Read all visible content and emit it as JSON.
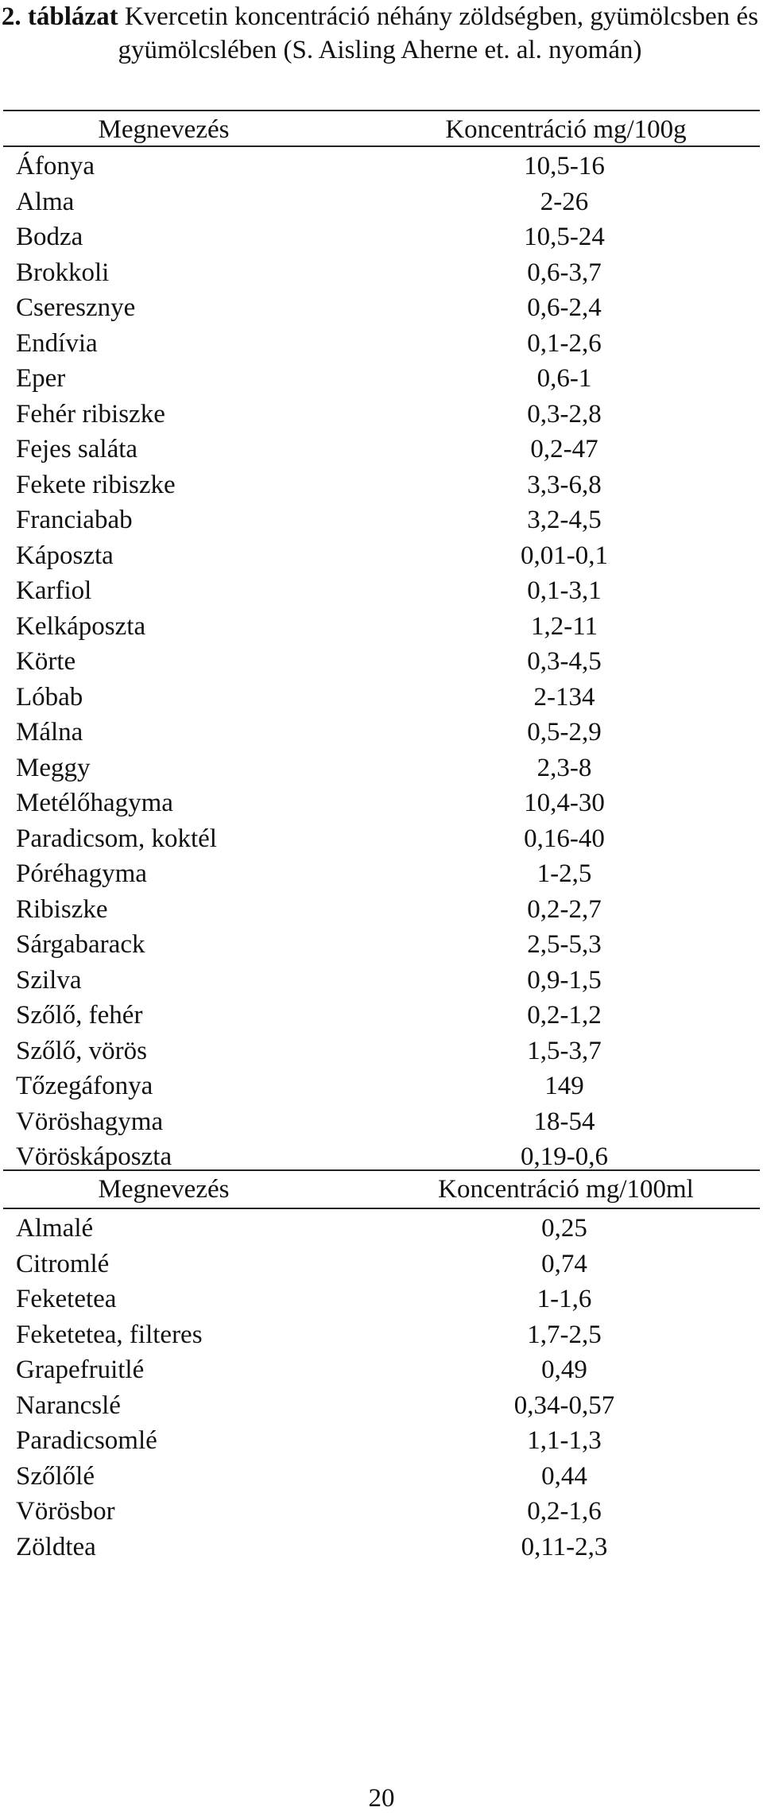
{
  "caption": {
    "label": "2. táblázat",
    "text": "Kvercetin koncentráció néhány zöldségben, gyümölcsben és gyümölcslében (S. Aisling Aherne et. al. nyomán)"
  },
  "table_food": {
    "header": {
      "name": "Megnevezés",
      "concentration": "Koncentráció mg/100g"
    },
    "rows": [
      {
        "name": "Áfonya",
        "value": "10,5-16"
      },
      {
        "name": "Alma",
        "value": "2-26"
      },
      {
        "name": "Bodza",
        "value": "10,5-24"
      },
      {
        "name": "Brokkoli",
        "value": "0,6-3,7"
      },
      {
        "name": "Cseresznye",
        "value": "0,6-2,4"
      },
      {
        "name": "Endívia",
        "value": "0,1-2,6"
      },
      {
        "name": "Eper",
        "value": "0,6-1"
      },
      {
        "name": "Fehér ribiszke",
        "value": "0,3-2,8"
      },
      {
        "name": "Fejes saláta",
        "value": "0,2-47"
      },
      {
        "name": "Fekete ribiszke",
        "value": "3,3-6,8"
      },
      {
        "name": "Franciabab",
        "value": "3,2-4,5"
      },
      {
        "name": "Káposzta",
        "value": "0,01-0,1"
      },
      {
        "name": "Karfiol",
        "value": "0,1-3,1"
      },
      {
        "name": "Kelkáposzta",
        "value": "1,2-11"
      },
      {
        "name": "Körte",
        "value": "0,3-4,5"
      },
      {
        "name": "Lóbab",
        "value": "2-134"
      },
      {
        "name": "Málna",
        "value": "0,5-2,9"
      },
      {
        "name": "Meggy",
        "value": "2,3-8"
      },
      {
        "name": "Metélőhagyma",
        "value": "10,4-30"
      },
      {
        "name": "Paradicsom, koktél",
        "value": "0,16-40"
      },
      {
        "name": "Póréhagyma",
        "value": "1-2,5"
      },
      {
        "name": "Ribiszke",
        "value": "0,2-2,7"
      },
      {
        "name": "Sárgabarack",
        "value": "2,5-5,3"
      },
      {
        "name": "Szilva",
        "value": "0,9-1,5"
      },
      {
        "name": "Szőlő, fehér",
        "value": "0,2-1,2"
      },
      {
        "name": "Szőlő, vörös",
        "value": "1,5-3,7"
      },
      {
        "name": "Tőzegáfonya",
        "value": "149"
      },
      {
        "name": "Vöröshagyma",
        "value": "18-54"
      },
      {
        "name": "Vöröskáposzta",
        "value": "0,19-0,6"
      }
    ]
  },
  "table_drinks": {
    "header": {
      "name": "Megnevezés",
      "concentration": "Koncentráció mg/100ml"
    },
    "rows": [
      {
        "name": "Almalé",
        "value": "0,25"
      },
      {
        "name": "Citromlé",
        "value": "0,74"
      },
      {
        "name": "Feketetea",
        "value": "1-1,6"
      },
      {
        "name": "Feketetea, filteres",
        "value": "1,7-2,5"
      },
      {
        "name": "Grapefruitlé",
        "value": "0,49"
      },
      {
        "name": "Narancslé",
        "value": "0,34-0,57"
      },
      {
        "name": "Paradicsomlé",
        "value": "1,1-1,3"
      },
      {
        "name": "Szőlőlé",
        "value": "0,44"
      },
      {
        "name": "Vörösbor",
        "value": "0,2-1,6"
      },
      {
        "name": "Zöldtea",
        "value": "0,11-2,3"
      }
    ]
  },
  "page_number": "20"
}
